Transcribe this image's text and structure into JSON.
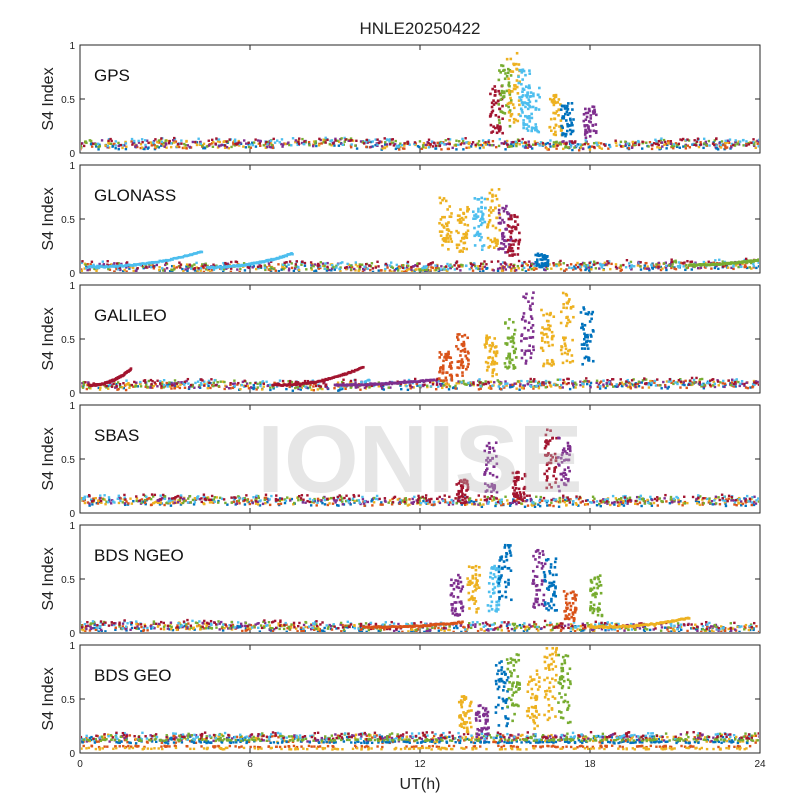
{
  "chart_data": {
    "type": "scatter",
    "title": "HNLE20250422",
    "xlabel": "UT(h)",
    "ylabel": "S4 Index",
    "xlim": [
      0,
      24
    ],
    "ylim": [
      0,
      1
    ],
    "xticks": [
      0,
      6,
      12,
      18,
      24
    ],
    "x_tick_labels": [
      "0",
      "6",
      "12",
      "18",
      "24"
    ],
    "yticks": [
      0,
      0.5,
      1
    ],
    "y_tick_labels": [
      "0",
      "0.5",
      "1"
    ],
    "grid": false,
    "watermark": "IONISE",
    "series_colors": [
      "#0072BD",
      "#D95319",
      "#EDB120",
      "#7E2F8E",
      "#77AC30",
      "#4DBEEE",
      "#A2142F"
    ],
    "panels": [
      {
        "label": "GPS",
        "baseline": [
          [
            0,
            0.08
          ],
          [
            3,
            0.09
          ],
          [
            6,
            0.08
          ],
          [
            9,
            0.1
          ],
          [
            12,
            0.07
          ],
          [
            14,
            0.09
          ],
          [
            18,
            0.07
          ],
          [
            21,
            0.09
          ],
          [
            24,
            0.08
          ]
        ],
        "bumps": [],
        "clusters": [
          {
            "x": 14.7,
            "y": 0.4,
            "s": 3,
            "color": 6
          },
          {
            "x": 15.0,
            "y": 0.55,
            "s": 5,
            "color": 4
          },
          {
            "x": 15.3,
            "y": 0.6,
            "s": 2,
            "color": 2
          },
          {
            "x": 15.7,
            "y": 0.5,
            "s": 0,
            "color": 5
          },
          {
            "x": 16.0,
            "y": 0.4,
            "s": 1,
            "color": 5
          },
          {
            "x": 16.8,
            "y": 0.35,
            "s": 2,
            "color": 2
          },
          {
            "x": 17.2,
            "y": 0.3,
            "s": 0,
            "color": 0
          },
          {
            "x": 18.0,
            "y": 0.28,
            "s": 3,
            "color": 3
          }
        ]
      },
      {
        "label": "GLONASS",
        "baseline": [
          [
            0,
            0.06
          ],
          [
            4,
            0.05
          ],
          [
            8,
            0.06
          ],
          [
            12,
            0.05
          ],
          [
            16,
            0.06
          ],
          [
            20,
            0.07
          ],
          [
            24,
            0.08
          ]
        ],
        "bumps": [
          {
            "x0": 0.3,
            "x1": 4.3,
            "peak": 0.2,
            "color": 5
          },
          {
            "x0": 4.5,
            "x1": 7.5,
            "peak": 0.18,
            "color": 5
          },
          {
            "x0": 21.5,
            "x1": 24,
            "peak": 0.12,
            "color": 4
          }
        ],
        "clusters": [
          {
            "x": 12.9,
            "y": 0.45,
            "s": 2,
            "color": 2
          },
          {
            "x": 13.5,
            "y": 0.4,
            "s": 4,
            "color": 2
          },
          {
            "x": 14.1,
            "y": 0.45,
            "s": 1,
            "color": 5
          },
          {
            "x": 14.6,
            "y": 0.5,
            "s": 6,
            "color": 2
          },
          {
            "x": 15.0,
            "y": 0.4,
            "s": 3,
            "color": 3
          },
          {
            "x": 15.3,
            "y": 0.35,
            "s": 0,
            "color": 6
          },
          {
            "x": 16.3,
            "y": 0.12,
            "s": 5,
            "color": 0
          }
        ]
      },
      {
        "label": "GALILEO",
        "baseline": [
          [
            0,
            0.07
          ],
          [
            4,
            0.08
          ],
          [
            8,
            0.07
          ],
          [
            12,
            0.08
          ],
          [
            16,
            0.08
          ],
          [
            20,
            0.09
          ],
          [
            24,
            0.09
          ]
        ],
        "bumps": [
          {
            "x0": 0.3,
            "x1": 1.8,
            "peak": 0.22,
            "color": 6
          },
          {
            "x0": 6.8,
            "x1": 10.0,
            "peak": 0.24,
            "color": 6
          },
          {
            "x0": 9.0,
            "x1": 12.5,
            "peak": 0.12,
            "color": 3
          }
        ],
        "clusters": [
          {
            "x": 12.9,
            "y": 0.25,
            "s": 1,
            "color": 1
          },
          {
            "x": 13.5,
            "y": 0.35,
            "s": 2,
            "color": 1
          },
          {
            "x": 14.5,
            "y": 0.35,
            "s": 3,
            "color": 2
          },
          {
            "x": 15.2,
            "y": 0.45,
            "s": 4,
            "color": 4
          },
          {
            "x": 15.8,
            "y": 0.6,
            "s": 5,
            "color": 3
          },
          {
            "x": 16.5,
            "y": 0.5,
            "s": 6,
            "color": 2
          },
          {
            "x": 17.2,
            "y": 0.6,
            "s": 0,
            "color": 2
          },
          {
            "x": 17.9,
            "y": 0.55,
            "s": 1,
            "color": 0
          }
        ]
      },
      {
        "label": "SBAS",
        "baseline": [
          [
            0,
            0.12
          ],
          [
            6,
            0.12
          ],
          [
            12,
            0.11
          ],
          [
            18,
            0.11
          ],
          [
            24,
            0.12
          ]
        ],
        "bumps": [],
        "clusters": [
          {
            "x": 13.5,
            "y": 0.2,
            "s": 1,
            "color": 6
          },
          {
            "x": 14.5,
            "y": 0.42,
            "s": 2,
            "color": 3
          },
          {
            "x": 15.5,
            "y": 0.25,
            "s": 3,
            "color": 6
          },
          {
            "x": 16.6,
            "y": 0.5,
            "s": 4,
            "color": 6
          },
          {
            "x": 17.1,
            "y": 0.45,
            "s": 5,
            "color": 3
          }
        ]
      },
      {
        "label": "BDS NGEO",
        "baseline": [
          [
            0,
            0.06
          ],
          [
            4,
            0.07
          ],
          [
            8,
            0.06
          ],
          [
            12,
            0.05
          ],
          [
            16,
            0.06
          ],
          [
            20,
            0.05
          ],
          [
            24,
            0.05
          ]
        ],
        "bumps": [
          {
            "x0": 10.0,
            "x1": 13.5,
            "peak": 0.1,
            "color": 1
          },
          {
            "x0": 18.0,
            "x1": 21.5,
            "peak": 0.14,
            "color": 2
          }
        ],
        "clusters": [
          {
            "x": 13.3,
            "y": 0.35,
            "s": 6,
            "color": 3
          },
          {
            "x": 13.9,
            "y": 0.4,
            "s": 0,
            "color": 2
          },
          {
            "x": 14.6,
            "y": 0.4,
            "s": 1,
            "color": 5
          },
          {
            "x": 15.0,
            "y": 0.55,
            "s": 2,
            "color": 0
          },
          {
            "x": 16.2,
            "y": 0.5,
            "s": 3,
            "color": 3
          },
          {
            "x": 16.6,
            "y": 0.45,
            "s": 4,
            "color": 0
          },
          {
            "x": 17.3,
            "y": 0.25,
            "s": 5,
            "color": 1
          },
          {
            "x": 18.2,
            "y": 0.35,
            "s": 6,
            "color": 4
          }
        ]
      },
      {
        "label": "BDS GEO",
        "baseline": [
          [
            0,
            0.14
          ],
          [
            12,
            0.14
          ],
          [
            24,
            0.14
          ]
        ],
        "extra_lines": [
          {
            "y": 0.1,
            "color": 0
          },
          {
            "y": 0.06,
            "color": 1
          },
          {
            "y": 0.04,
            "color": 2
          },
          {
            "y": 0.12,
            "color": 4
          }
        ],
        "bumps": [],
        "clusters": [
          {
            "x": 13.6,
            "y": 0.35,
            "s": 1,
            "color": 2
          },
          {
            "x": 14.2,
            "y": 0.3,
            "s": 2,
            "color": 3
          },
          {
            "x": 14.9,
            "y": 0.55,
            "s": 3,
            "color": 0
          },
          {
            "x": 15.3,
            "y": 0.6,
            "s": 4,
            "color": 4
          },
          {
            "x": 16.0,
            "y": 0.5,
            "s": 5,
            "color": 2
          },
          {
            "x": 16.6,
            "y": 0.65,
            "s": 6,
            "color": 2
          },
          {
            "x": 17.1,
            "y": 0.6,
            "s": 0,
            "color": 4
          }
        ]
      }
    ]
  }
}
